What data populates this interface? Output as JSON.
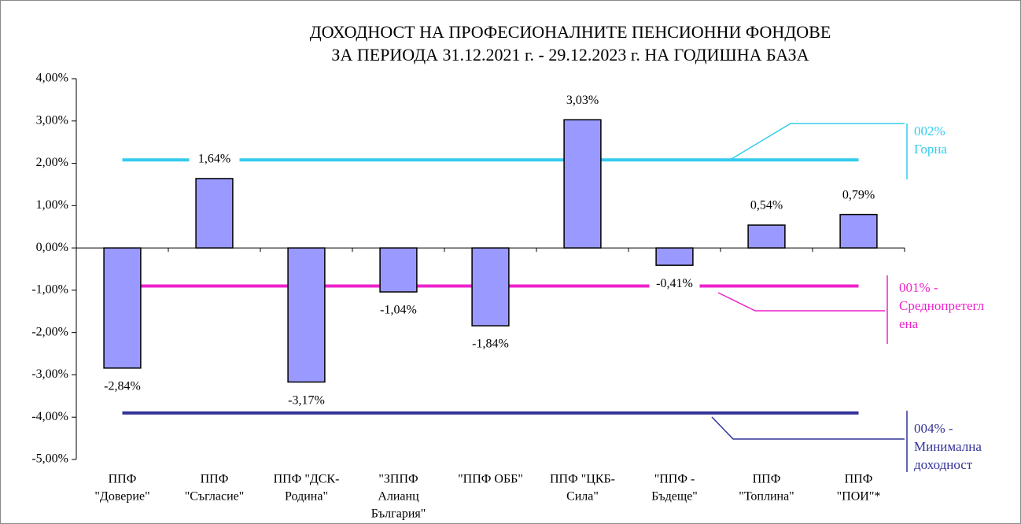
{
  "chart_data": {
    "type": "bar",
    "title": [
      "ДОХОДНОСТ НА ПРОФЕСИОНАЛНИТЕ ПЕНСИОННИ ФОНДОВЕ",
      "ЗА ПЕРИОДА 31.12.2021 г. - 29.12.2023 г. НА ГОДИШНА БАЗА"
    ],
    "categories": [
      [
        "ППФ",
        "\"Доверие\""
      ],
      [
        "ППФ",
        "\"Съгласие\""
      ],
      [
        "ППФ \"ДСК-",
        "Родина\""
      ],
      [
        "\"ЗППФ",
        "Алианц",
        "България\""
      ],
      [
        "\"ППФ ОББ\""
      ],
      [
        "ППФ \"ЦКБ-",
        "Сила\""
      ],
      [
        "\"ППФ -",
        "Бъдеще\""
      ],
      [
        "ППФ",
        "\"Топлина\""
      ],
      [
        "ППФ",
        "\"ПОИ\"*"
      ]
    ],
    "values": [
      -2.84,
      1.64,
      -3.17,
      -1.04,
      -1.84,
      3.03,
      -0.41,
      0.54,
      0.79
    ],
    "value_labels": [
      "-2,84%",
      "1,64%",
      "-3,17%",
      "-1,04%",
      "-1,84%",
      "3,03%",
      "-0,41%",
      "0,54%",
      "0,79%"
    ],
    "color": "#9999ff",
    "ylim": [
      -5,
      4
    ],
    "yticks": [
      {
        "value": 4,
        "label": "4,00%"
      },
      {
        "value": 3,
        "label": "3,00%"
      },
      {
        "value": 2,
        "label": "2,00%"
      },
      {
        "value": 1,
        "label": "1,00%"
      },
      {
        "value": 0,
        "label": "0,00%"
      },
      {
        "value": -1,
        "label": "-1,00%"
      },
      {
        "value": -2,
        "label": "-2,00%"
      },
      {
        "value": -3,
        "label": "-3,00%"
      },
      {
        "value": -4,
        "label": "-4,00%"
      },
      {
        "value": -5,
        "label": "-5,00%"
      }
    ],
    "reference_lines": [
      {
        "value": 2.08,
        "color": "#33ccee",
        "label": [
          "002%",
          "Горна"
        ]
      },
      {
        "value": -0.9,
        "color": "#ee22cc",
        "label": [
          "001% -",
          "Среднопретегл",
          "ена"
        ]
      },
      {
        "value": -3.9,
        "color": "#333399",
        "label": [
          "004% -",
          "Минимална",
          "доходност"
        ]
      }
    ]
  }
}
